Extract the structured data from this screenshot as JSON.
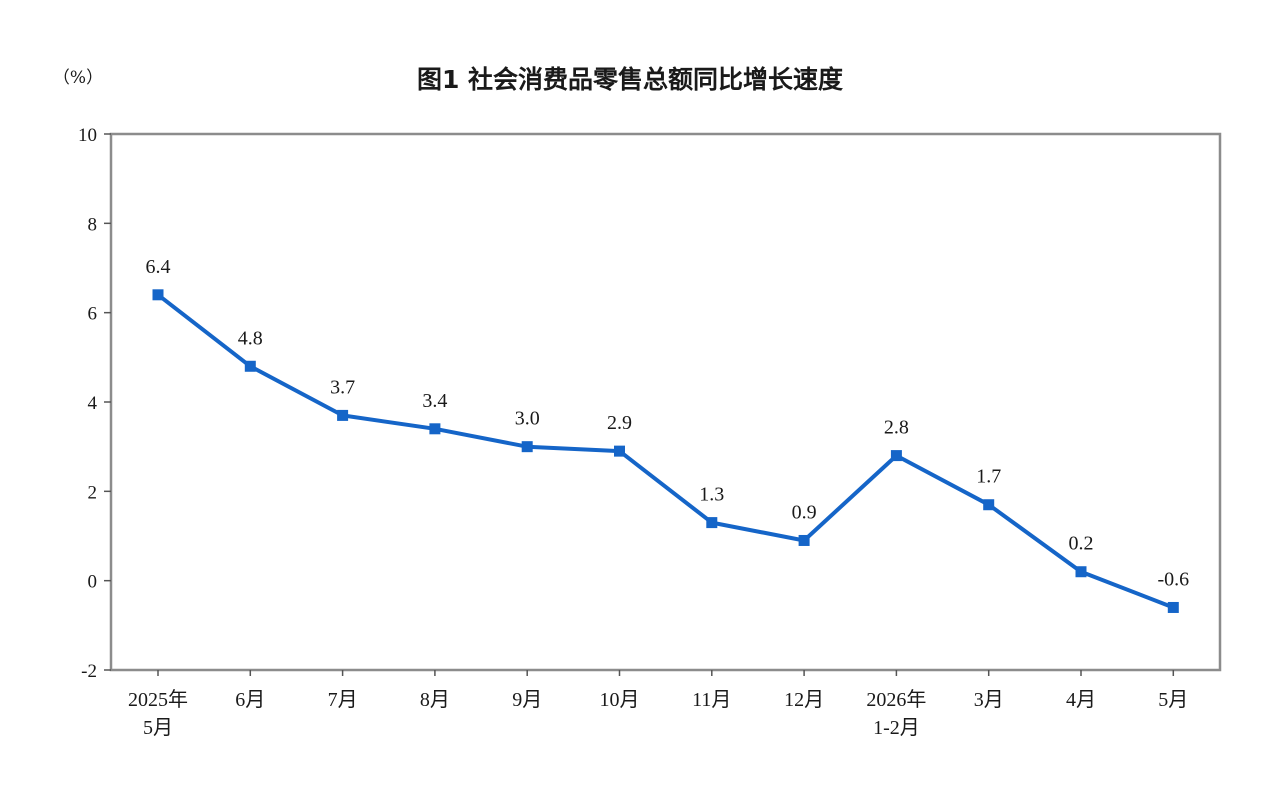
{
  "chart_data": {
    "type": "line",
    "title": "图1  社会消费品零售总额同比增长速度",
    "unit_label": "（%）",
    "categories": [
      [
        "2025年",
        "5月"
      ],
      [
        "6月"
      ],
      [
        "7月"
      ],
      [
        "8月"
      ],
      [
        "9月"
      ],
      [
        "10月"
      ],
      [
        "11月"
      ],
      [
        "12月"
      ],
      [
        "2026年",
        "1-2月"
      ],
      [
        "3月"
      ],
      [
        "4月"
      ],
      [
        "5月"
      ]
    ],
    "series": [
      {
        "values": [
          6.4,
          4.8,
          3.7,
          3.4,
          3.0,
          2.9,
          1.3,
          0.9,
          2.8,
          1.7,
          0.2,
          -0.6
        ],
        "labels": [
          "6.4",
          "4.8",
          "3.7",
          "3.4",
          "3.0",
          "2.9",
          "1.3",
          "0.9",
          "2.8",
          "1.7",
          "0.2",
          "-0.6"
        ],
        "color": "#1565c8"
      }
    ],
    "ylim": [
      -2,
      10
    ],
    "yticks": [
      -2,
      0,
      2,
      4,
      6,
      8,
      10
    ],
    "grid": false,
    "legend": "none",
    "frame_color": "#8c8c8c"
  }
}
